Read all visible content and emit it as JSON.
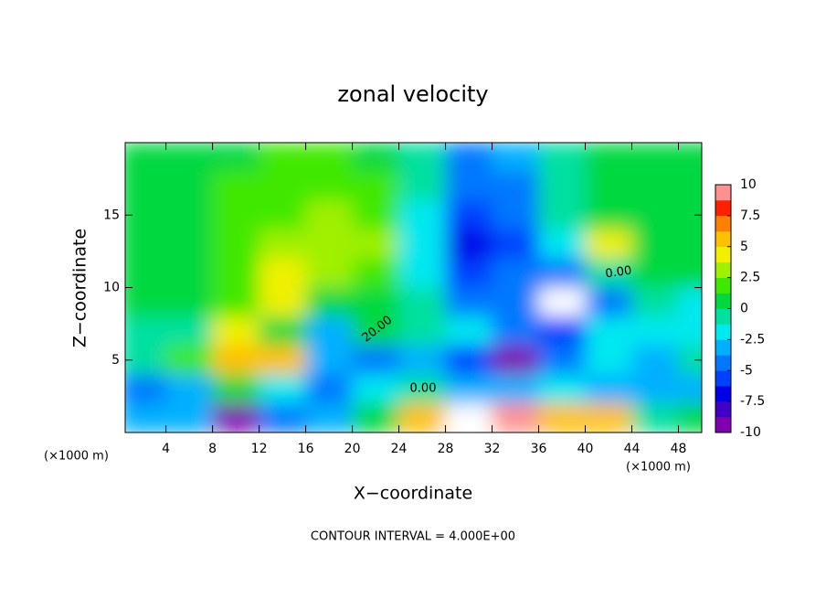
{
  "chart_data": {
    "type": "contour",
    "title": "zonal velocity",
    "x_label": "X−coordinate",
    "y_label": "Z−coordinate",
    "unit_labels": [
      "(×1000 m)",
      "(×1000 m)"
    ],
    "footnote": "CONTOUR INTERVAL = 4.000E+00",
    "contour_labels": [
      "0.00",
      "20.00",
      "0.00"
    ],
    "xlim": [
      0.5,
      50
    ],
    "ylim": [
      0,
      20
    ],
    "xticks": [
      4,
      8,
      12,
      16,
      20,
      24,
      28,
      32,
      36,
      40,
      44,
      48
    ],
    "yticks": [
      5,
      10,
      15
    ],
    "x": [
      2,
      6,
      10,
      14,
      18,
      22,
      26,
      30,
      34,
      38,
      42,
      46,
      50
    ],
    "y": [
      19,
      17,
      15,
      13,
      11,
      9,
      7,
      5,
      3,
      1
    ],
    "z": [
      [
        1,
        1,
        1,
        1.5,
        1.5,
        1,
        -1,
        -4,
        -3,
        -1,
        0,
        0.5,
        0.5
      ],
      [
        1,
        1,
        1.5,
        2,
        2,
        1.5,
        -1,
        -5,
        -4,
        -1,
        0,
        0.5,
        0.5
      ],
      [
        1,
        1,
        1.5,
        2,
        2.5,
        2,
        -2,
        -6,
        -5,
        -1,
        0,
        1,
        1
      ],
      [
        1,
        1,
        2,
        2.5,
        3,
        2.5,
        -2,
        -7,
        -6,
        -2,
        4,
        1,
        1
      ],
      [
        0.5,
        1,
        2,
        4,
        3,
        2,
        -2,
        -6,
        -4,
        -4,
        -1,
        0.5,
        0.5
      ],
      [
        0,
        1,
        2,
        4,
        1,
        1,
        -1,
        -5,
        -5,
        -12,
        -5,
        -1,
        -2
      ],
      [
        -1,
        -0.5,
        4,
        0,
        -3,
        0.5,
        -1,
        -2,
        -4,
        -6,
        -2,
        -2,
        -2
      ],
      [
        -1,
        2,
        6,
        5,
        -3,
        -5,
        -3,
        -6,
        -9,
        -5,
        -2,
        -3,
        -1
      ],
      [
        -4,
        -3,
        1,
        -2,
        -4,
        -2,
        -1,
        -3,
        -3,
        -2,
        -3,
        -3,
        -3
      ],
      [
        -3,
        -3,
        -9,
        -5,
        -3,
        0,
        6,
        12,
        10,
        5,
        6,
        -1,
        0
      ]
    ],
    "colorbar": {
      "lim": [
        -10,
        10
      ],
      "ticks": [
        10,
        7.5,
        5,
        2.5,
        0,
        -2.5,
        -5,
        -7.5,
        -10
      ],
      "colors": [
        "#8000b0",
        "#4000c8",
        "#0000e8",
        "#0040ff",
        "#0078ff",
        "#00b0ff",
        "#00e8f0",
        "#00e0a0",
        "#00d840",
        "#40e800",
        "#a0f000",
        "#f0f000",
        "#ffc000",
        "#ff8000",
        "#ff2000",
        "#ff9090"
      ]
    },
    "out_of_range_color": "#ffffff"
  }
}
